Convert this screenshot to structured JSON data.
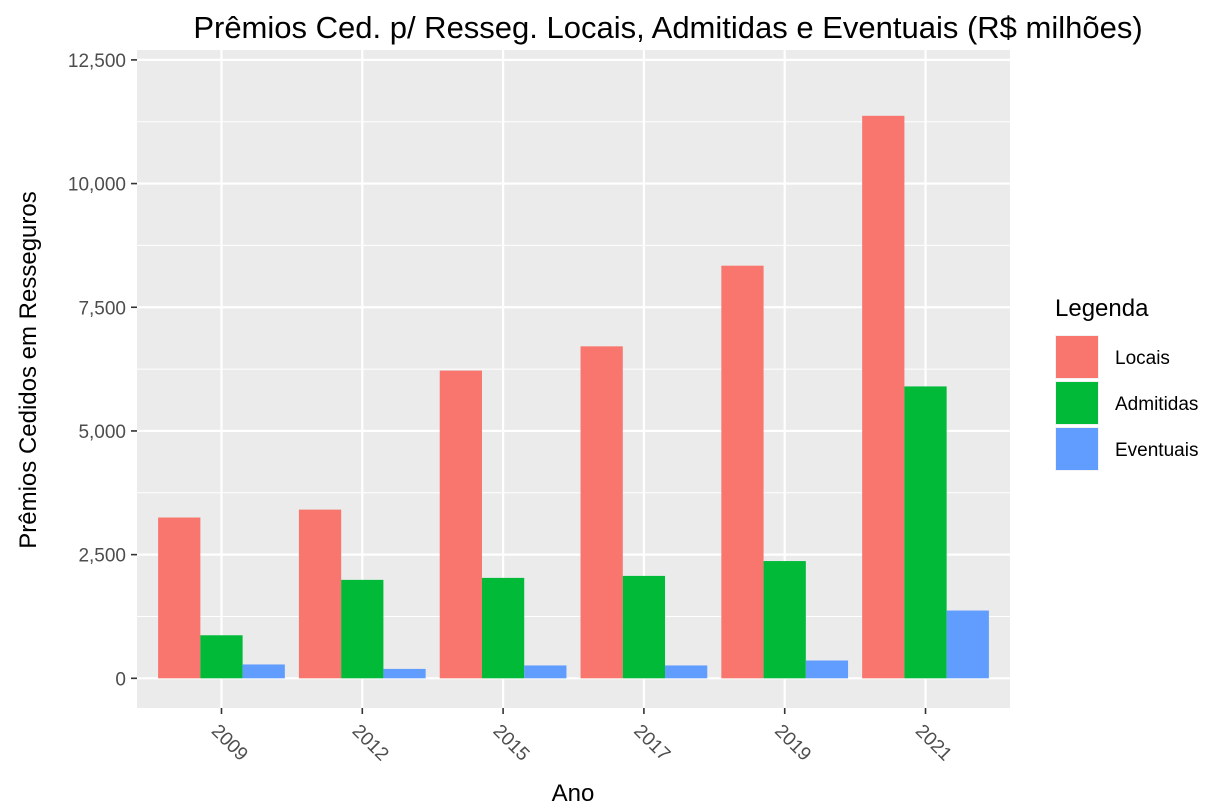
{
  "chart_data": {
    "type": "bar",
    "title": "Prêmios Ced. p/ Resseg. Locais, Admitidas e Eventuais (R$ milhões)",
    "xlabel": "Ano",
    "ylabel": "Prêmios Cedidos em Resseguros",
    "categories": [
      "2009",
      "2012",
      "2015",
      "2017",
      "2019",
      "2021"
    ],
    "series": [
      {
        "name": "Locais",
        "color": "#F8766D",
        "values": [
          3250,
          3410,
          6220,
          6710,
          8340,
          11370
        ]
      },
      {
        "name": "Admitidas",
        "color": "#00BA38",
        "values": [
          870,
          1990,
          2030,
          2070,
          2370,
          5900
        ]
      },
      {
        "name": "Eventuais",
        "color": "#619CFF",
        "values": [
          280,
          190,
          260,
          260,
          360,
          1370
        ]
      }
    ],
    "ylim": [
      -600,
      12700
    ],
    "yticks": [
      0,
      2500,
      5000,
      7500,
      10000,
      12500
    ],
    "ytick_labels": [
      "0",
      "2,500",
      "5,000",
      "7,500",
      "10,000",
      "12,500"
    ],
    "legend": {
      "title": "Legenda",
      "position": "right"
    },
    "grid": true,
    "panel_background": "#EBEBEB"
  }
}
